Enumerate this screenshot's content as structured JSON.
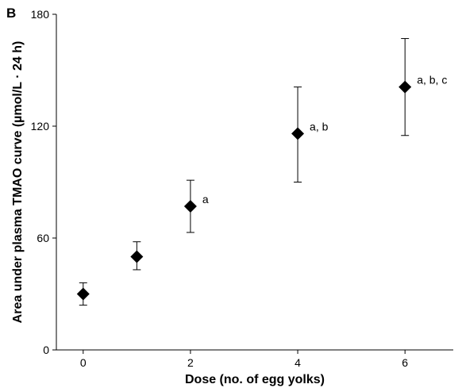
{
  "panel_label": "B",
  "chart_data": {
    "type": "scatter",
    "xlabel": "Dose (no. of egg yolks)",
    "ylabel": "Area under plasma TMAO curve (µmol/L · 24 h)",
    "xlim": [
      -0.5,
      6.9
    ],
    "ylim": [
      0,
      180
    ],
    "xticks": [
      0,
      2,
      4,
      6
    ],
    "yticks": [
      0,
      60,
      120,
      180
    ],
    "grid": false,
    "marker": "diamond",
    "marker_color": "#000000",
    "points": [
      {
        "x": 0,
        "y": 30,
        "err_low": 24,
        "err_high": 36,
        "annotation": ""
      },
      {
        "x": 1,
        "y": 50,
        "err_low": 43,
        "err_high": 58,
        "annotation": ""
      },
      {
        "x": 2,
        "y": 77,
        "err_low": 63,
        "err_high": 91,
        "annotation": "a"
      },
      {
        "x": 4,
        "y": 116,
        "err_low": 90,
        "err_high": 141,
        "annotation": "a, b"
      },
      {
        "x": 6,
        "y": 141,
        "err_low": 115,
        "err_high": 167,
        "annotation": "a, b, c"
      }
    ]
  }
}
